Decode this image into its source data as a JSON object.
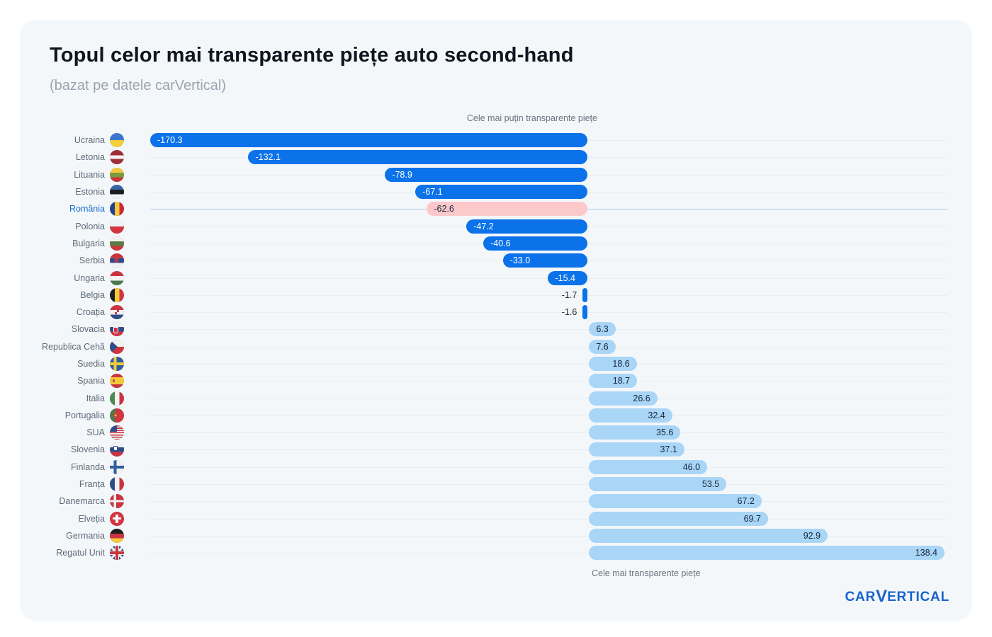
{
  "colors": {
    "card_bg": "#f3f7fa",
    "negative_bar": "#0b72e9",
    "positive_bar": "#a9d5f6",
    "highlight_bar": "#fcc9ca",
    "highlight_label": "#1b6fc9",
    "highlight_gridline": "#b6cde9",
    "gridline": "#e8edf2",
    "category_label": "#5f6b78",
    "axis_label": "#6b7480",
    "value_in_negative": "#ffffff",
    "value_in_positive": "#16263d",
    "brand": "#1a63cc"
  },
  "branding": {
    "logo_text_left": "CAR",
    "logo_text_v": "V",
    "logo_text_right": "ERTICAL"
  },
  "chart_data": {
    "type": "bar",
    "orientation": "horizontal",
    "title": "Topul celor mai transparente piețe auto second-hand",
    "subtitle": "(bazat pe datele carVertical)",
    "axis_top_label": "Cele mai puțin transparente piețe",
    "axis_bottom_label": "Cele mai transparente piețe",
    "xlim": [
      -170.3,
      138.4
    ],
    "grid": true,
    "legend": "none",
    "highlight_country": "România",
    "highlight_index": 4,
    "categories": [
      "Ucraina",
      "Letonia",
      "Lituania",
      "Estonia",
      "România",
      "Polonia",
      "Bulgaria",
      "Serbia",
      "Ungaria",
      "Belgia",
      "Croația",
      "Slovacia",
      "Republica Cehă",
      "Suedia",
      "Spania",
      "Italia",
      "Portugalia",
      "SUA",
      "Slovenia",
      "Finlanda",
      "Franța",
      "Danemarca",
      "Elveția",
      "Germania",
      "Regatul Unit"
    ],
    "values": [
      -170.3,
      -132.1,
      -78.9,
      -67.1,
      -62.6,
      -47.2,
      -40.6,
      -33.0,
      -15.4,
      -1.7,
      -1.6,
      6.3,
      7.6,
      18.6,
      18.7,
      26.6,
      32.4,
      35.6,
      37.1,
      46.0,
      53.5,
      67.2,
      69.7,
      92.9,
      138.4
    ],
    "value_labels": [
      "-170.3",
      "-132.1",
      "-78.9",
      "-67.1",
      "-62.6",
      "-47.2",
      "-40.6",
      "-33.0",
      "-15.4",
      "-1.7",
      "-1.6",
      "6.3",
      "7.6",
      "18.6",
      "18.7",
      "26.6",
      "32.4",
      "35.6",
      "37.1",
      "46.0",
      "53.5",
      "67.2",
      "69.7",
      "92.9",
      "138.4"
    ],
    "flags": [
      "ua",
      "lv",
      "lt",
      "ee",
      "ro",
      "pl",
      "bg",
      "rs",
      "hu",
      "be",
      "hr",
      "sk",
      "cz",
      "se",
      "es",
      "it",
      "pt",
      "us",
      "si",
      "fi",
      "fr",
      "dk",
      "ch",
      "de",
      "gb"
    ]
  }
}
